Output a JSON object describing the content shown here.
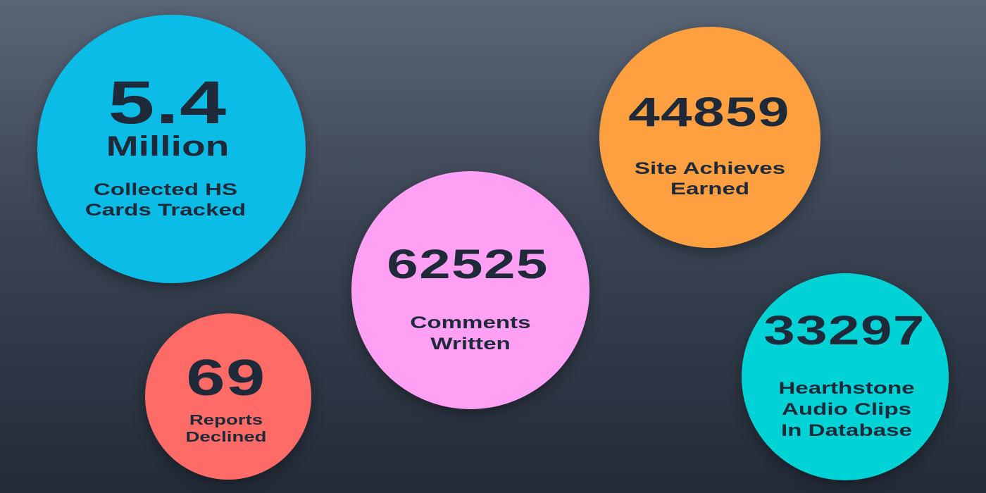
{
  "colors": {
    "text": "#1e2a3a",
    "blue": "#0bbde6",
    "orange": "#ffa040",
    "pink": "#ffa0f5",
    "red": "#ff6b66",
    "teal": "#00d2d6"
  },
  "stats": {
    "cards": {
      "value": "5.4",
      "unit": "Million",
      "label": [
        "Collected HS",
        "Cards Tracked"
      ]
    },
    "achieves": {
      "value": "44859",
      "label": [
        "Site Achieves",
        "Earned"
      ]
    },
    "comments": {
      "value": "62525",
      "label": [
        "Comments",
        "Written"
      ]
    },
    "reports": {
      "value": "69",
      "label": [
        "Reports",
        "Declined"
      ]
    },
    "audio": {
      "value": "33297",
      "label": [
        "Hearthstone",
        "Audio Clips",
        "In Database"
      ]
    }
  }
}
